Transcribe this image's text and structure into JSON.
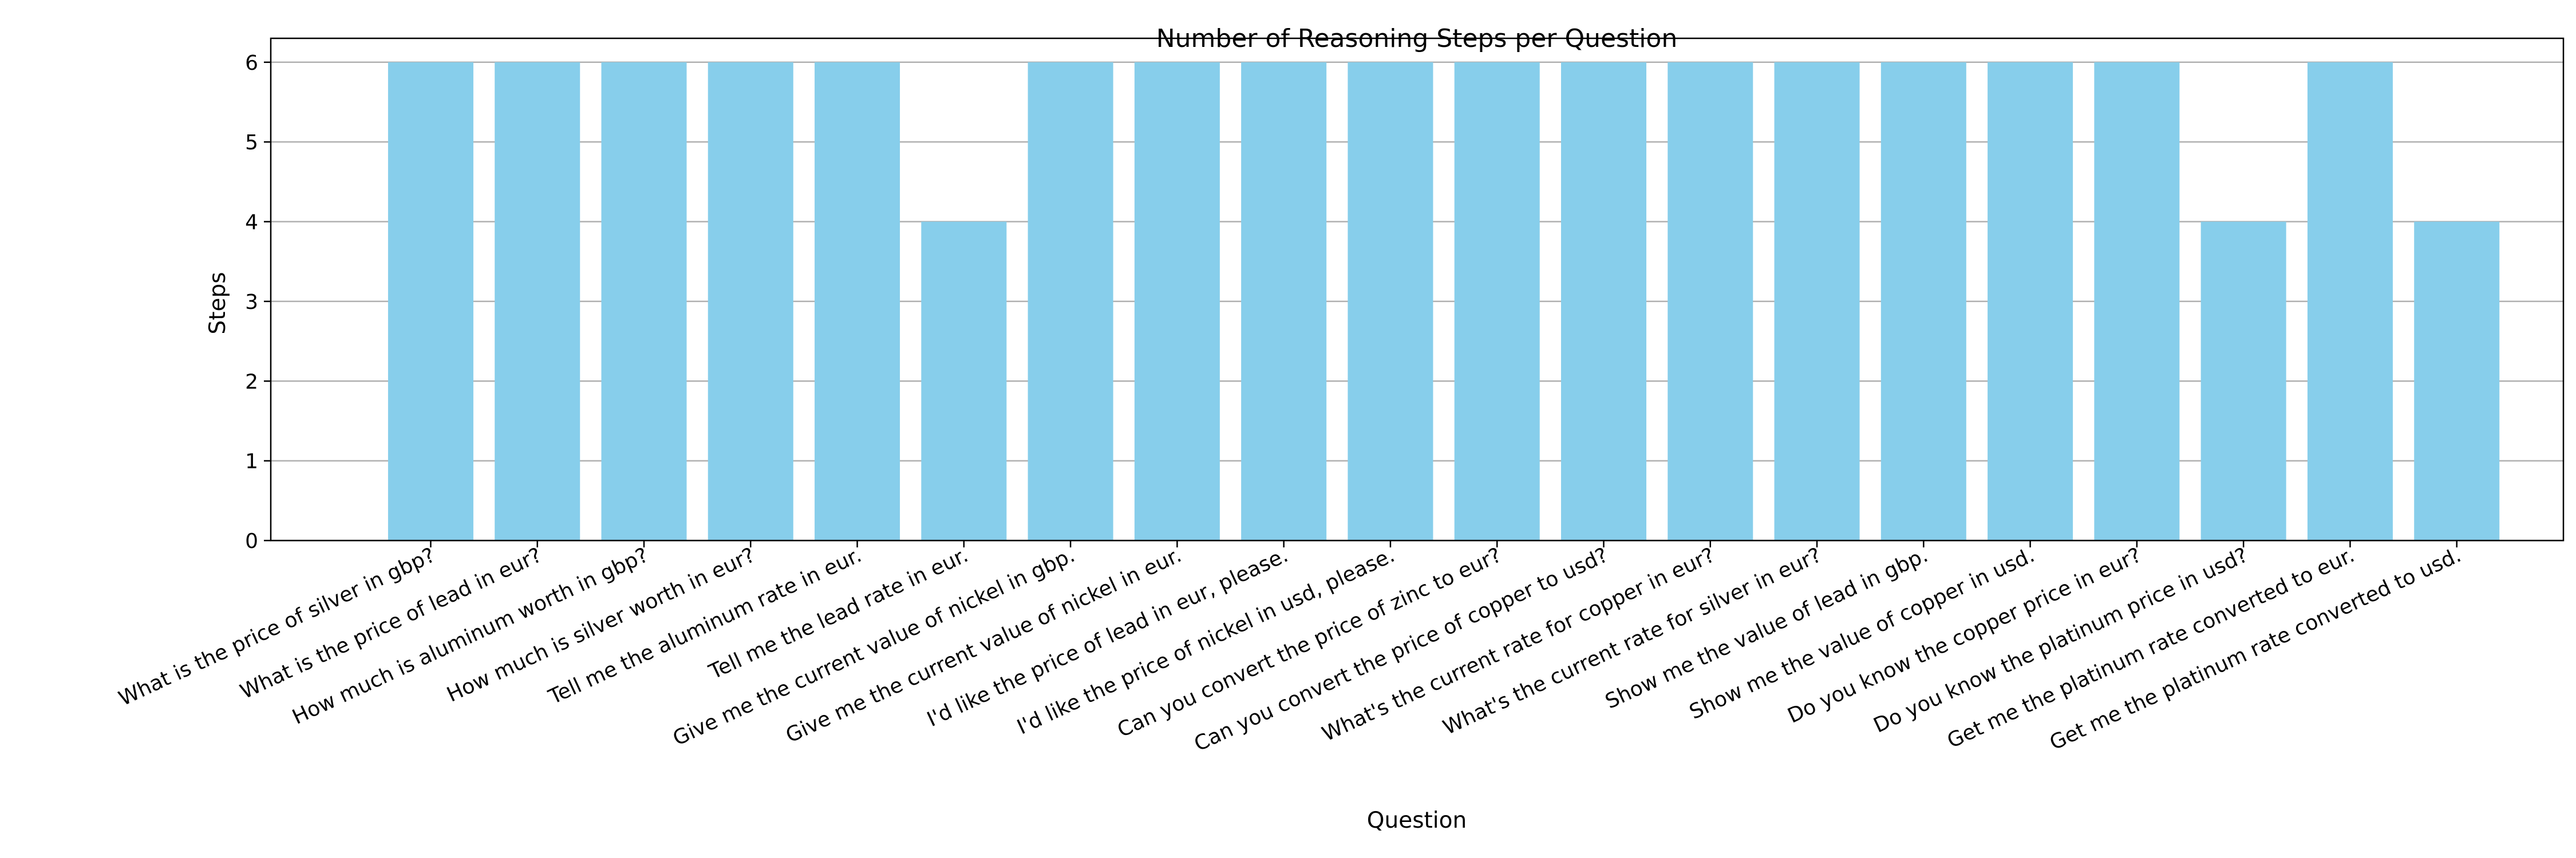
{
  "chart_data": {
    "type": "bar",
    "title": "Number of Reasoning Steps per Question",
    "xlabel": "Question",
    "ylabel": "Steps",
    "ylim": [
      0,
      6.3
    ],
    "yticks": [
      0,
      1,
      2,
      3,
      4,
      5,
      6
    ],
    "grid": "horizontal",
    "bar_color": "#87CEEB",
    "grid_color": "#b0b0b0",
    "categories": [
      "What is the price of silver in gbp?",
      "What is the price of lead in eur?",
      "How much is aluminum worth in gbp?",
      "How much is silver worth in eur?",
      "Tell me the aluminum rate in eur.",
      "Tell me the lead rate in eur.",
      "Give me the current value of nickel in gbp.",
      "Give me the current value of nickel in eur.",
      "I'd like the price of lead in eur, please.",
      "I'd like the price of nickel in usd, please.",
      "Can you convert the price of zinc to eur?",
      "Can you convert the price of copper to usd?",
      "What's the current rate for copper in eur?",
      "What's the current rate for silver in eur?",
      "Show me the value of lead in gbp.",
      "Show me the value of copper in usd.",
      "Do you know the copper price in eur?",
      "Do you know the platinum price in usd?",
      "Get me the platinum rate converted to eur.",
      "Get me the platinum rate converted to usd."
    ],
    "values": [
      6,
      6,
      6,
      6,
      6,
      4,
      6,
      6,
      6,
      6,
      6,
      6,
      6,
      6,
      6,
      6,
      6,
      4,
      6,
      4
    ]
  }
}
